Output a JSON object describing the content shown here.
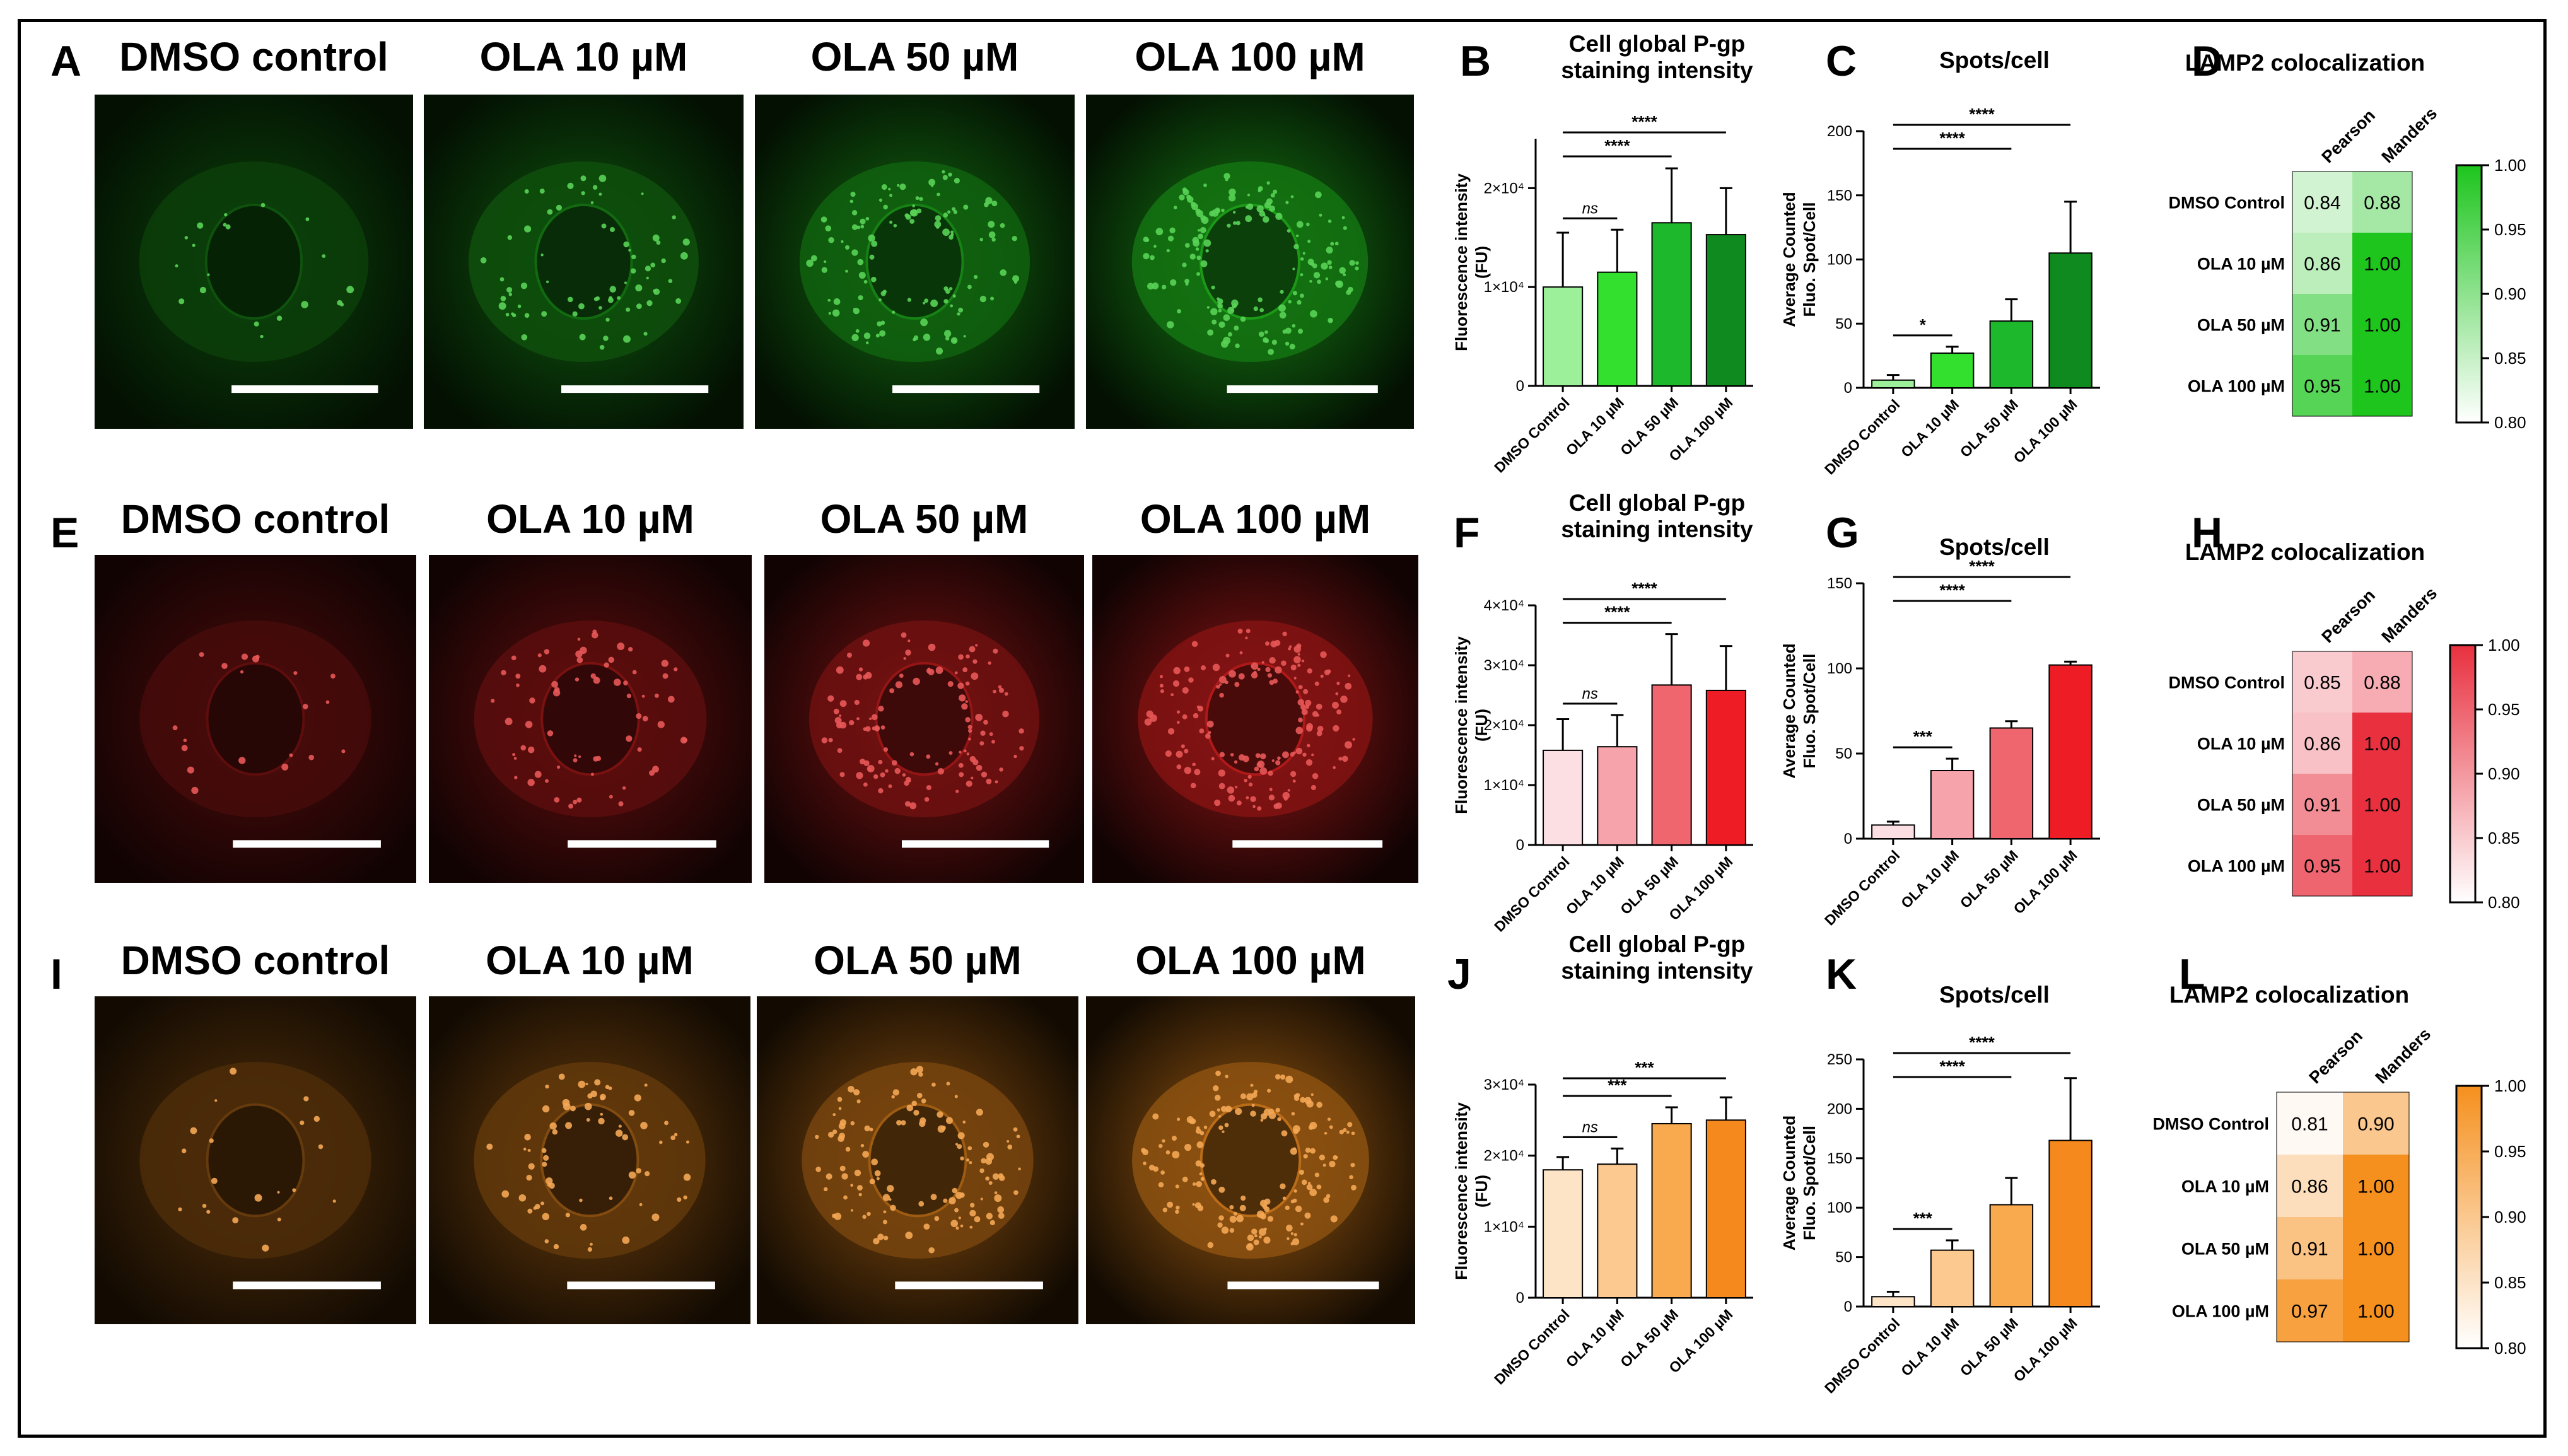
{
  "rows": [
    {
      "id": "green",
      "color": "#22c41e",
      "micro_label": "A",
      "bar_label": "B",
      "spots_label": "C",
      "heatmap_label": "D",
      "micro_titles": [
        "DMSO control",
        "OLA 10 µM",
        "OLA 50 µM",
        "OLA 100 µM"
      ]
    },
    {
      "id": "red",
      "color": "#e02020",
      "micro_label": "E",
      "bar_label": "F",
      "spots_label": "G",
      "heatmap_label": "H",
      "micro_titles": [
        "DMSO control",
        "OLA 10 µM",
        "OLA 50 µM",
        "OLA 100 µM"
      ]
    },
    {
      "id": "orange",
      "color": "#f08a1c",
      "micro_label": "I",
      "bar_label": "J",
      "spots_label": "K",
      "heatmap_label": "L",
      "micro_titles": [
        "DMSO control",
        "OLA 10 µM",
        "OLA 50 µM",
        "OLA 100 µM"
      ]
    }
  ],
  "chart_data": [
    {
      "panel": "B",
      "type": "bar",
      "title": "Cell global P-gp staining intensity",
      "ylabel": "Fluorescence intensity (FU)",
      "categories": [
        "DMSO Control",
        "OLA 10 µM",
        "OLA 50 µM",
        "OLA 100 µM"
      ],
      "values": [
        10000,
        11500,
        16500,
        15300
      ],
      "errors": [
        5500,
        4300,
        5500,
        4700
      ],
      "ylim": [
        0,
        25000
      ],
      "yticks": [
        {
          "v": 0,
          "label": "0"
        },
        {
          "v": 10000,
          "label": "1×10⁴"
        },
        {
          "v": 20000,
          "label": "2×10⁴"
        }
      ],
      "colors": [
        "#9df09a",
        "#33e02d",
        "#1db82b",
        "#0f8a1e"
      ],
      "significance": [
        {
          "from": 0,
          "to": 1,
          "label": "ns"
        },
        {
          "from": 0,
          "to": 2,
          "label": "****"
        },
        {
          "from": 0,
          "to": 3,
          "label": "****"
        }
      ]
    },
    {
      "panel": "C",
      "type": "bar",
      "title": "Spots/cell",
      "ylabel": "Average Counted Fluo. Spot/Cell",
      "categories": [
        "DMSO Control",
        "OLA 10 µM",
        "OLA 50 µM",
        "OLA 100 µM"
      ],
      "values": [
        6,
        27,
        52,
        105
      ],
      "errors": [
        4,
        5,
        17,
        40
      ],
      "ylim": [
        0,
        200
      ],
      "yticks": [
        {
          "v": 0,
          "label": "0"
        },
        {
          "v": 50,
          "label": "50"
        },
        {
          "v": 100,
          "label": "100"
        },
        {
          "v": 150,
          "label": "150"
        },
        {
          "v": 200,
          "label": "200"
        }
      ],
      "colors": [
        "#9df09a",
        "#33e02d",
        "#1db82b",
        "#0f8a1e"
      ],
      "significance": [
        {
          "from": 0,
          "to": 1,
          "label": "*"
        },
        {
          "from": 0,
          "to": 2,
          "label": "****"
        },
        {
          "from": 0,
          "to": 3,
          "label": "****"
        }
      ]
    },
    {
      "panel": "D",
      "type": "heatmap",
      "title": "LAMP2 colocalization",
      "rows": [
        "DMSO Control",
        "OLA 10 µM",
        "OLA 50 µM",
        "OLA 100 µM"
      ],
      "columns": [
        "Pearson",
        "Manders"
      ],
      "values": [
        [
          0.84,
          0.88
        ],
        [
          0.86,
          1.0
        ],
        [
          0.91,
          1.0
        ],
        [
          0.95,
          1.0
        ]
      ],
      "color_range": [
        0.8,
        1.0
      ],
      "colorbar_ticks": [
        "1.00",
        "0.95",
        "0.90",
        "0.85",
        "0.80"
      ],
      "color_max": "#1dc51d"
    },
    {
      "panel": "F",
      "type": "bar",
      "title": "Cell global P-gp staining intensity",
      "ylabel": "Fluorescence intensity (FU)",
      "categories": [
        "DMSO Control",
        "OLA 10 µM",
        "OLA 50 µM",
        "OLA 100 µM"
      ],
      "values": [
        15800,
        16400,
        26700,
        25800
      ],
      "errors": [
        5200,
        5300,
        8500,
        7400
      ],
      "ylim": [
        0,
        40000
      ],
      "yticks": [
        {
          "v": 0,
          "label": "0"
        },
        {
          "v": 10000,
          "label": "1×10⁴"
        },
        {
          "v": 20000,
          "label": "2×10⁴"
        },
        {
          "v": 30000,
          "label": "3×10⁴"
        },
        {
          "v": 40000,
          "label": "4×10⁴"
        }
      ],
      "colors": [
        "#fcdfe3",
        "#f7a3ab",
        "#f0666f",
        "#ee1c24"
      ],
      "significance": [
        {
          "from": 0,
          "to": 1,
          "label": "ns"
        },
        {
          "from": 0,
          "to": 2,
          "label": "****"
        },
        {
          "from": 0,
          "to": 3,
          "label": "****"
        }
      ]
    },
    {
      "panel": "G",
      "type": "bar",
      "title": "Spots/cell",
      "ylabel": "Average Counted Fluo. Spot/Cell",
      "categories": [
        "DMSO Control",
        "OLA 10 µM",
        "OLA 50 µM",
        "OLA 100 µM"
      ],
      "values": [
        8,
        40,
        65,
        102
      ],
      "errors": [
        2,
        7,
        4,
        2
      ],
      "ylim": [
        0,
        150
      ],
      "yticks": [
        {
          "v": 0,
          "label": "0"
        },
        {
          "v": 50,
          "label": "50"
        },
        {
          "v": 100,
          "label": "100"
        },
        {
          "v": 150,
          "label": "150"
        }
      ],
      "colors": [
        "#fcdfe3",
        "#f7a3ab",
        "#f0666f",
        "#ee1c24"
      ],
      "significance": [
        {
          "from": 0,
          "to": 1,
          "label": "***"
        },
        {
          "from": 0,
          "to": 2,
          "label": "****"
        },
        {
          "from": 0,
          "to": 3,
          "label": "****"
        }
      ]
    },
    {
      "panel": "H",
      "type": "heatmap",
      "title": "LAMP2 colocalization",
      "rows": [
        "DMSO Control",
        "OLA 10 µM",
        "OLA 50 µM",
        "OLA 100 µM"
      ],
      "columns": [
        "Pearson",
        "Manders"
      ],
      "values": [
        [
          0.85,
          0.88
        ],
        [
          0.86,
          1.0
        ],
        [
          0.91,
          1.0
        ],
        [
          0.95,
          1.0
        ]
      ],
      "color_range": [
        0.8,
        1.0
      ],
      "colorbar_ticks": [
        "1.00",
        "0.95",
        "0.90",
        "0.85",
        "0.80"
      ],
      "color_max": "#e8303f"
    },
    {
      "panel": "J",
      "type": "bar",
      "title": "Cell global P-gp staining intensity",
      "ylabel": "Fluorescence intensity (FU)",
      "categories": [
        "DMSO Control",
        "OLA 10 µM",
        "OLA 50 µM",
        "OLA 100 µM"
      ],
      "values": [
        18000,
        18800,
        24500,
        25000
      ],
      "errors": [
        1800,
        2200,
        2300,
        3200
      ],
      "ylim": [
        0,
        30000
      ],
      "yticks": [
        {
          "v": 0,
          "label": "0"
        },
        {
          "v": 10000,
          "label": "1×10⁴"
        },
        {
          "v": 20000,
          "label": "2×10⁴"
        },
        {
          "v": 30000,
          "label": "3×10⁴"
        }
      ],
      "colors": [
        "#fde4c7",
        "#fcc990",
        "#f9a94e",
        "#f5891e"
      ],
      "significance": [
        {
          "from": 0,
          "to": 1,
          "label": "ns"
        },
        {
          "from": 0,
          "to": 2,
          "label": "***"
        },
        {
          "from": 0,
          "to": 3,
          "label": "***"
        }
      ]
    },
    {
      "panel": "K",
      "type": "bar",
      "title": "Spots/cell",
      "ylabel": "Average Counted Fluo. Spot/Cell",
      "categories": [
        "DMSO Control",
        "OLA 10 µM",
        "OLA 50 µM",
        "OLA 100 µM"
      ],
      "values": [
        10,
        57,
        103,
        168
      ],
      "errors": [
        5,
        10,
        27,
        63
      ],
      "ylim": [
        0,
        250
      ],
      "yticks": [
        {
          "v": 0,
          "label": "0"
        },
        {
          "v": 50,
          "label": "50"
        },
        {
          "v": 100,
          "label": "100"
        },
        {
          "v": 150,
          "label": "150"
        },
        {
          "v": 200,
          "label": "200"
        },
        {
          "v": 250,
          "label": "250"
        }
      ],
      "colors": [
        "#fde4c7",
        "#fcc990",
        "#f9a94e",
        "#f5891e"
      ],
      "significance": [
        {
          "from": 0,
          "to": 1,
          "label": "***"
        },
        {
          "from": 0,
          "to": 2,
          "label": "****"
        },
        {
          "from": 0,
          "to": 3,
          "label": "****"
        }
      ]
    },
    {
      "panel": "L",
      "type": "heatmap",
      "title": "LAMP2 colocalization",
      "rows": [
        "DMSO Control",
        "OLA 10 µM",
        "OLA 50 µM",
        "OLA 100 µM"
      ],
      "columns": [
        "Pearson",
        "Manders"
      ],
      "values": [
        [
          0.81,
          0.9
        ],
        [
          0.86,
          1.0
        ],
        [
          0.91,
          1.0
        ],
        [
          0.97,
          1.0
        ]
      ],
      "color_range": [
        0.8,
        1.0
      ],
      "colorbar_ticks": [
        "1.00",
        "0.95",
        "0.90",
        "0.85",
        "0.80"
      ],
      "color_max": "#f5901e"
    }
  ]
}
